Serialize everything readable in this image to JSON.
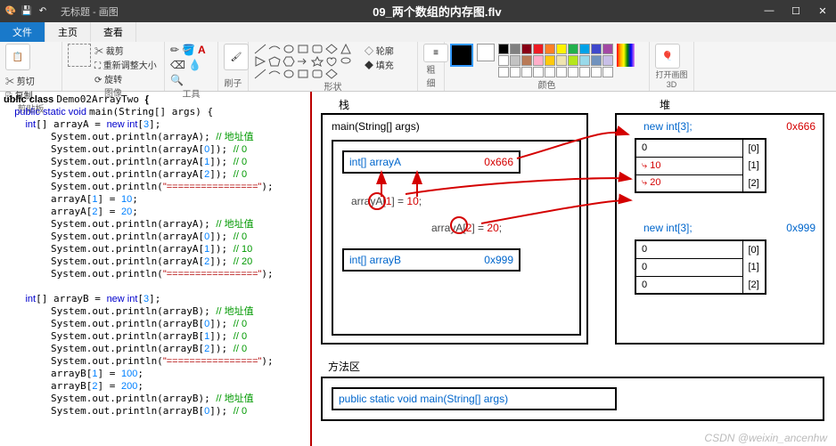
{
  "title_left": "无标题 - 画图",
  "title_center": "09_两个数组的内存图.flv",
  "tabs": {
    "file": "文件",
    "home": "主页",
    "view": "查看"
  },
  "ribbon": {
    "paste_btn": "粘贴",
    "cut": "剪切",
    "copy": "复制",
    "clipboard": "剪贴板",
    "select": "选择",
    "crop": "裁剪",
    "resize": "重新调整大小",
    "rotate": "旋转",
    "image": "图像",
    "tools": "工具",
    "brush": "刷子",
    "outline": "轮廓",
    "fill": "填充",
    "shapes": "形状",
    "thick": "粗细",
    "c1": "颜色 1",
    "c2": "颜色 2",
    "edit": "编辑颜色",
    "colors": "颜色",
    "paint3d": "打开画图 3D"
  },
  "palette": [
    [
      "#000000",
      "#7f7f7f",
      "#880015",
      "#ed1c24",
      "#ff7f27",
      "#fff200",
      "#22b14c",
      "#00a2e8",
      "#3f48cc",
      "#a349a4"
    ],
    [
      "#ffffff",
      "#c3c3c3",
      "#b97a57",
      "#ffaec9",
      "#ffc90e",
      "#efe4b0",
      "#b5e61d",
      "#99d9ea",
      "#7092be",
      "#c8bfe7"
    ],
    [
      "#ffffff",
      "#ffffff",
      "#ffffff",
      "#ffffff",
      "#ffffff",
      "#ffffff",
      "#ffffff",
      "#ffffff",
      "#ffffff",
      "#ffffff"
    ]
  ],
  "code_lines": [
    [
      [
        "ublic class ",
        "k-bold"
      ],
      [
        "Demo02ArrayTwo ",
        ""
      ],
      [
        "{",
        "k-bold"
      ]
    ],
    [
      [
        "    public static void ",
        "k-blue"
      ],
      [
        "main(String[] args) {",
        ""
      ]
    ],
    [
      [
        "        int",
        "k-blue"
      ],
      [
        "[] arrayA = ",
        ""
      ],
      [
        "new int",
        "k-blue"
      ],
      [
        "[",
        ""
      ],
      [
        "3",
        "k-num"
      ],
      [
        "];",
        ""
      ]
    ],
    [
      [
        "        System.out.println(arrayA); ",
        ""
      ],
      [
        "// 地址值",
        "k-cmt"
      ]
    ],
    [
      [
        "        System.out.println(arrayA[",
        ""
      ],
      [
        "0",
        "k-num"
      ],
      [
        "]); ",
        ""
      ],
      [
        "// 0",
        "k-cmt"
      ]
    ],
    [
      [
        "        System.out.println(arrayA[",
        ""
      ],
      [
        "1",
        "k-num"
      ],
      [
        "]); ",
        ""
      ],
      [
        "// 0",
        "k-cmt"
      ]
    ],
    [
      [
        "        System.out.println(arrayA[",
        ""
      ],
      [
        "2",
        "k-num"
      ],
      [
        "]); ",
        ""
      ],
      [
        "// 0",
        "k-cmt"
      ]
    ],
    [
      [
        "        System.out.println(",
        ""
      ],
      [
        "\"================\"",
        "k-str"
      ],
      [
        ");",
        ""
      ]
    ],
    [
      [
        "        arrayA[",
        ""
      ],
      [
        "1",
        "k-num"
      ],
      [
        "] = ",
        ""
      ],
      [
        "10",
        "k-num"
      ],
      [
        ";",
        ""
      ]
    ],
    [
      [
        "        arrayA[",
        ""
      ],
      [
        "2",
        "k-num"
      ],
      [
        "] = ",
        ""
      ],
      [
        "20",
        "k-num"
      ],
      [
        ";",
        ""
      ]
    ],
    [
      [
        "        System.out.println(arrayA); ",
        ""
      ],
      [
        "// 地址值",
        "k-cmt"
      ]
    ],
    [
      [
        "        System.out.println(arrayA[",
        ""
      ],
      [
        "0",
        "k-num"
      ],
      [
        "]); ",
        ""
      ],
      [
        "// 0",
        "k-cmt"
      ]
    ],
    [
      [
        "        System.out.println(arrayA[",
        ""
      ],
      [
        "1",
        "k-num"
      ],
      [
        "]); ",
        ""
      ],
      [
        "// 10",
        "k-cmt"
      ]
    ],
    [
      [
        "        System.out.println(arrayA[",
        ""
      ],
      [
        "2",
        "k-num"
      ],
      [
        "]); ",
        ""
      ],
      [
        "// 20",
        "k-cmt"
      ]
    ],
    [
      [
        "        System.out.println(",
        ""
      ],
      [
        "\"================\"",
        "k-str"
      ],
      [
        ");",
        ""
      ]
    ],
    [
      [
        "",
        ""
      ]
    ],
    [
      [
        "        int",
        "k-blue"
      ],
      [
        "[] arrayB = ",
        ""
      ],
      [
        "new int",
        "k-blue"
      ],
      [
        "[",
        ""
      ],
      [
        "3",
        "k-num"
      ],
      [
        "];",
        ""
      ]
    ],
    [
      [
        "        System.out.println(arrayB); ",
        ""
      ],
      [
        "// 地址值",
        "k-cmt"
      ]
    ],
    [
      [
        "        System.out.println(arrayB[",
        ""
      ],
      [
        "0",
        "k-num"
      ],
      [
        "]); ",
        ""
      ],
      [
        "// 0",
        "k-cmt"
      ]
    ],
    [
      [
        "        System.out.println(arrayB[",
        ""
      ],
      [
        "1",
        "k-num"
      ],
      [
        "]); ",
        ""
      ],
      [
        "// 0",
        "k-cmt"
      ]
    ],
    [
      [
        "        System.out.println(arrayB[",
        ""
      ],
      [
        "2",
        "k-num"
      ],
      [
        "]); ",
        ""
      ],
      [
        "// 0",
        "k-cmt"
      ]
    ],
    [
      [
        "        System.out.println(",
        ""
      ],
      [
        "\"================\"",
        "k-str"
      ],
      [
        ");",
        ""
      ]
    ],
    [
      [
        "        arrayB[",
        ""
      ],
      [
        "1",
        "k-num"
      ],
      [
        "] = ",
        ""
      ],
      [
        "100",
        "k-num"
      ],
      [
        ";",
        ""
      ]
    ],
    [
      [
        "        arrayB[",
        ""
      ],
      [
        "2",
        "k-num"
      ],
      [
        "] = ",
        ""
      ],
      [
        "200",
        "k-num"
      ],
      [
        ";",
        ""
      ]
    ],
    [
      [
        "        System.out.println(arrayB); ",
        ""
      ],
      [
        "// 地址值",
        "k-cmt"
      ]
    ],
    [
      [
        "        System.out.println(arrayB[",
        ""
      ],
      [
        "0",
        "k-num"
      ],
      [
        "]); ",
        ""
      ],
      [
        "// 0",
        "k-cmt"
      ]
    ]
  ],
  "diagram": {
    "stack_label": "栈",
    "heap_label": "堆",
    "method_label": "方法区",
    "main_sig": "main(String[] args)",
    "arrayA_decl": "int[] arrayA",
    "addrA": "0x666",
    "arrayA_assign1": "arrayA[1] = 10;",
    "arrayA_assign2": "arrayA[2] = 20;",
    "arrayB_decl": "int[] arrayB",
    "addrB": "0x999",
    "newA": "new int[3];",
    "newB": "new int[3];",
    "valsA": [
      "0",
      "10",
      "20"
    ],
    "valsB": [
      "0",
      "0",
      "0"
    ],
    "idx": [
      "[0]",
      "[1]",
      "[2]"
    ],
    "method_sig": "public static void main(String[] args)",
    "arrow_color": "#d40000",
    "circle_color": "#d40000",
    "red": "#d40000",
    "blue": "#0066cc"
  },
  "watermark": "CSDN @weixin_ancenhw"
}
